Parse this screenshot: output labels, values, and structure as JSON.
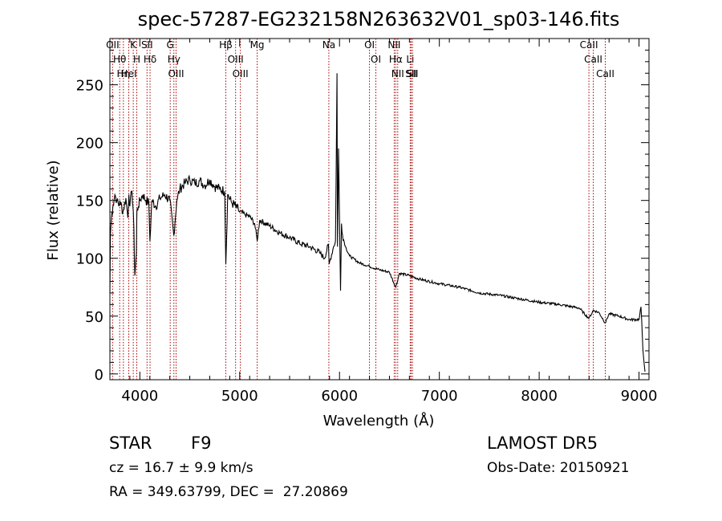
{
  "chart_data": {
    "type": "line",
    "title": "spec-57287-EG232158N263632V01_sp03-146.fits",
    "xlabel": "Wavelength (Å)",
    "ylabel": "Flux (relative)",
    "xlim": [
      3700,
      9100
    ],
    "ylim": [
      -5,
      290
    ],
    "x_ticks": [
      4000,
      5000,
      6000,
      7000,
      8000,
      9000
    ],
    "x_tick_labels": [
      "4000",
      "5000",
      "6000",
      "7000",
      "8000",
      "9000"
    ],
    "y_ticks": [
      0,
      50,
      100,
      150,
      200,
      250
    ],
    "y_tick_labels": [
      "0",
      "50",
      "100",
      "150",
      "200",
      "250"
    ],
    "grid": false,
    "series": [
      {
        "x": [
          3700,
          3705,
          3715,
          3730,
          3750,
          3770,
          3790,
          3800,
          3830,
          3860,
          3880,
          3890,
          3900,
          3920,
          3935,
          3950,
          3965,
          3970,
          3985,
          4000,
          4030,
          4060,
          4090,
          4101,
          4120,
          4160,
          4200,
          4250,
          4300,
          4340,
          4370,
          4400,
          4450,
          4500,
          4550,
          4600,
          4650,
          4700,
          4750,
          4800,
          4850,
          4861,
          4880,
          4920,
          4960,
          5000,
          5050,
          5100,
          5150,
          5175,
          5200,
          5300,
          5400,
          5500,
          5600,
          5700,
          5800,
          5850,
          5889,
          5896,
          5940,
          5960,
          5975,
          5980,
          5990,
          6000,
          6010,
          6020,
          6030,
          6060,
          6100,
          6200,
          6300,
          6400,
          6500,
          6563,
          6600,
          6700,
          6800,
          7000,
          7200,
          7400,
          7600,
          7800,
          8000,
          8200,
          8400,
          8498,
          8542,
          8600,
          8662,
          8700,
          8800,
          8900,
          9000,
          9020,
          9040,
          9060
        ],
        "y": [
          70,
          120,
          135,
          145,
          155,
          150,
          145,
          150,
          140,
          152,
          135,
          155,
          145,
          158,
          140,
          85,
          105,
          140,
          145,
          150,
          155,
          150,
          148,
          115,
          150,
          145,
          152,
          155,
          150,
          120,
          150,
          160,
          165,
          168,
          165,
          167,
          163,
          168,
          162,
          160,
          158,
          95,
          155,
          148,
          145,
          140,
          138,
          136,
          130,
          115,
          133,
          128,
          122,
          118,
          113,
          110,
          105,
          100,
          112,
          95,
          110,
          115,
          260,
          110,
          195,
          135,
          72,
          130,
          120,
          110,
          102,
          96,
          93,
          90,
          88,
          75,
          87,
          85,
          82,
          78,
          75,
          70,
          68,
          65,
          62,
          60,
          57,
          48,
          55,
          53,
          44,
          52,
          50,
          47,
          47,
          58,
          20,
          2
        ]
      }
    ],
    "line_annotations": [
      {
        "wavelength": 3727,
        "label": "OII"
      },
      {
        "wavelength": 3798,
        "label": "Hθ"
      },
      {
        "wavelength": 3835,
        "label": "Hη"
      },
      {
        "wavelength": 3889,
        "label": "HeI"
      },
      {
        "wavelength": 3934,
        "label": "K"
      },
      {
        "wavelength": 3969,
        "label": "H"
      },
      {
        "wavelength": 4072,
        "label": "SII"
      },
      {
        "wavelength": 4102,
        "label": "Hδ"
      },
      {
        "wavelength": 4304,
        "label": "G"
      },
      {
        "wavelength": 4341,
        "label": "Hγ"
      },
      {
        "wavelength": 4363,
        "label": "OIII"
      },
      {
        "wavelength": 4861,
        "label": "Hβ"
      },
      {
        "wavelength": 4959,
        "label": "OIII"
      },
      {
        "wavelength": 5007,
        "label": "OIII"
      },
      {
        "wavelength": 5175,
        "label": "Mg"
      },
      {
        "wavelength": 5893,
        "label": "Na"
      },
      {
        "wavelength": 6300,
        "label": "OI"
      },
      {
        "wavelength": 6364,
        "label": "OI"
      },
      {
        "wavelength": 6548,
        "label": "NII"
      },
      {
        "wavelength": 6563,
        "label": "Hα"
      },
      {
        "wavelength": 6583,
        "label": "NII"
      },
      {
        "wavelength": 6708,
        "label": "Li"
      },
      {
        "wavelength": 6717,
        "label": "SII"
      },
      {
        "wavelength": 6731,
        "label": "SII"
      },
      {
        "wavelength": 8498,
        "label": "CaII"
      },
      {
        "wavelength": 8542,
        "label": "CaII"
      },
      {
        "wavelength": 8662,
        "label": "CaII"
      }
    ]
  },
  "info": {
    "object_class": "STAR",
    "subclass": "F9",
    "survey": "LAMOST DR5",
    "redshift": "cz = 16.7 ± 9.9 km/s",
    "obs_date": "Obs-Date: 20150921",
    "coordinates": "RA = 349.63799, DEC =  27.20869"
  },
  "colors": {
    "spectrum": "#000000",
    "line_marker": "#aa0000",
    "text": "#000000"
  }
}
